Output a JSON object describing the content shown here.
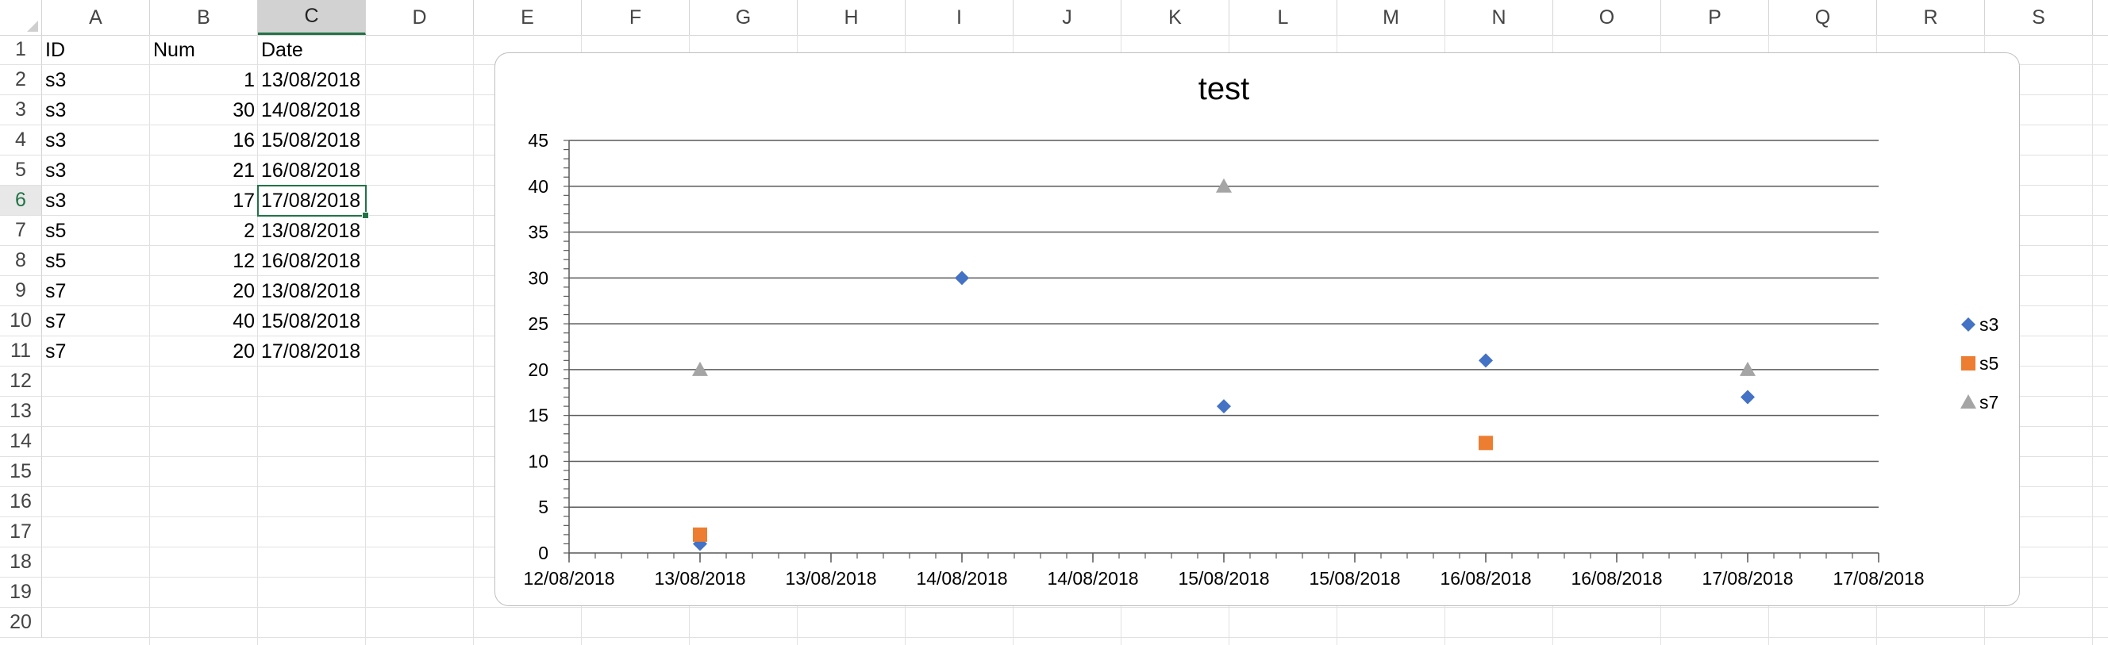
{
  "sheet": {
    "columns": [
      "A",
      "B",
      "C",
      "D",
      "E",
      "F",
      "G",
      "H",
      "I",
      "J",
      "K",
      "L",
      "M",
      "N",
      "O",
      "P",
      "Q",
      "R",
      "S"
    ],
    "selected_column": "C",
    "rows": [
      "1",
      "2",
      "3",
      "4",
      "5",
      "6",
      "7",
      "8",
      "9",
      "10",
      "11",
      "12",
      "13",
      "14",
      "15",
      "16",
      "17",
      "18",
      "19",
      "20"
    ],
    "selected_row": "6",
    "header": {
      "id": "ID",
      "num": "Num",
      "date": "Date"
    },
    "data": [
      {
        "id": "s3",
        "num": "1",
        "date": "13/08/2018"
      },
      {
        "id": "s3",
        "num": "30",
        "date": "14/08/2018"
      },
      {
        "id": "s3",
        "num": "16",
        "date": "15/08/2018"
      },
      {
        "id": "s3",
        "num": "21",
        "date": "16/08/2018"
      },
      {
        "id": "s3",
        "num": "17",
        "date": "17/08/2018"
      },
      {
        "id": "s5",
        "num": "2",
        "date": "13/08/2018"
      },
      {
        "id": "s5",
        "num": "12",
        "date": "16/08/2018"
      },
      {
        "id": "s7",
        "num": "20",
        "date": "13/08/2018"
      },
      {
        "id": "s7",
        "num": "40",
        "date": "15/08/2018"
      },
      {
        "id": "s7",
        "num": "20",
        "date": "17/08/2018"
      }
    ],
    "active_cell": "C6",
    "accent_color": "#217346"
  },
  "chart_data": {
    "type": "scatter",
    "title": "test",
    "xlabel": "",
    "ylabel": "",
    "x_tick_labels": [
      "12/08/2018",
      "13/08/2018",
      "13/08/2018",
      "14/08/2018",
      "14/08/2018",
      "15/08/2018",
      "15/08/2018",
      "16/08/2018",
      "16/08/2018",
      "17/08/2018",
      "17/08/2018"
    ],
    "xlim": [
      "12/08/2018 12:00",
      "17/08/2018 12:00"
    ],
    "y_tick_labels": [
      "0",
      "5",
      "10",
      "15",
      "20",
      "25",
      "30",
      "35",
      "40",
      "45"
    ],
    "ylim": [
      0,
      45
    ],
    "grid": "horizontal",
    "legend_position": "right",
    "series": [
      {
        "name": "s3",
        "marker": "diamond",
        "color": "#4472c4",
        "points": [
          {
            "x": "13/08/2018",
            "y": 1
          },
          {
            "x": "14/08/2018",
            "y": 30
          },
          {
            "x": "15/08/2018",
            "y": 16
          },
          {
            "x": "16/08/2018",
            "y": 21
          },
          {
            "x": "17/08/2018",
            "y": 17
          }
        ]
      },
      {
        "name": "s5",
        "marker": "square",
        "color": "#ed7d31",
        "points": [
          {
            "x": "13/08/2018",
            "y": 2
          },
          {
            "x": "16/08/2018",
            "y": 12
          }
        ]
      },
      {
        "name": "s7",
        "marker": "triangle",
        "color": "#a5a5a5",
        "points": [
          {
            "x": "13/08/2018",
            "y": 20
          },
          {
            "x": "15/08/2018",
            "y": 40
          },
          {
            "x": "17/08/2018",
            "y": 20
          }
        ]
      }
    ]
  }
}
